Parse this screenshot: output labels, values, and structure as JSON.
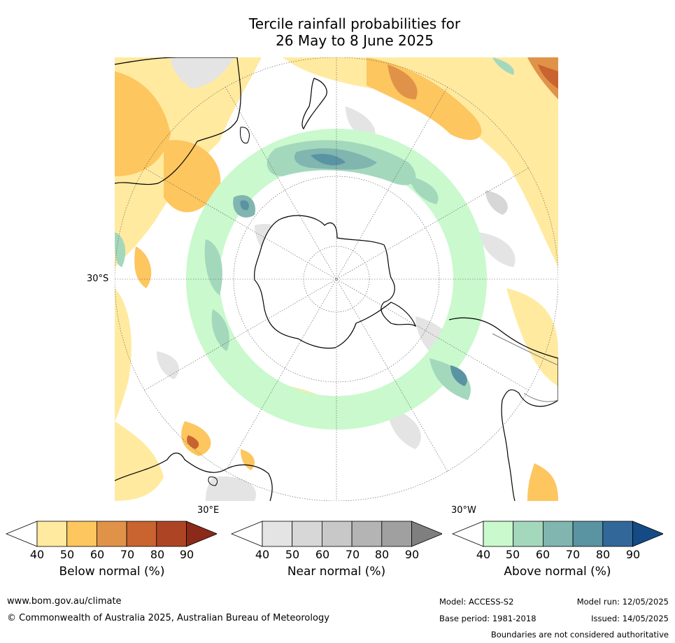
{
  "title": {
    "line1": "Tercile rainfall probabilities for",
    "line2": "26 May to 8 June 2025"
  },
  "map": {
    "projection": "south-polar-stereographic",
    "labels": {
      "lat": "30°S",
      "lon_east": "30°E",
      "lon_west": "30°W"
    },
    "colors": {
      "ocean_background": "#ffffff",
      "coastline": "#000000",
      "boundaries": "#7f7f7f",
      "graticule": "#555555"
    }
  },
  "colorbars": [
    {
      "id": "below",
      "title": "Below normal (%)",
      "ticks": [
        "40",
        "50",
        "60",
        "70",
        "80",
        "90"
      ],
      "colors": [
        "#ffeaa0",
        "#fdc65f",
        "#e09348",
        "#c9632f",
        "#ad4524",
        "#8c2a19"
      ]
    },
    {
      "id": "near",
      "title": "Near normal (%)",
      "ticks": [
        "40",
        "50",
        "60",
        "70",
        "80",
        "90"
      ],
      "colors": [
        "#e4e4e4",
        "#d7d7d7",
        "#c8c8c8",
        "#b4b4b4",
        "#a0a0a0",
        "#7f7f7f"
      ]
    },
    {
      "id": "above",
      "title": "Above normal (%)",
      "ticks": [
        "40",
        "50",
        "60",
        "70",
        "80",
        "90"
      ],
      "colors": [
        "#c9f9cd",
        "#a4d8bc",
        "#80b5b0",
        "#5a93a2",
        "#326799",
        "#144a86"
      ]
    }
  ],
  "footer": {
    "website": "www.bom.gov.au/climate",
    "copyright": "© Commonwealth of Australia 2025, Australian Bureau of Meteorology",
    "model": "Model: ACCESS-S2",
    "model_run": "Model run: 12/05/2025",
    "base_period": "Base period: 1981-2018",
    "issued": "Issued: 14/05/2025",
    "boundaries_note": "Boundaries are not considered authoritative"
  }
}
